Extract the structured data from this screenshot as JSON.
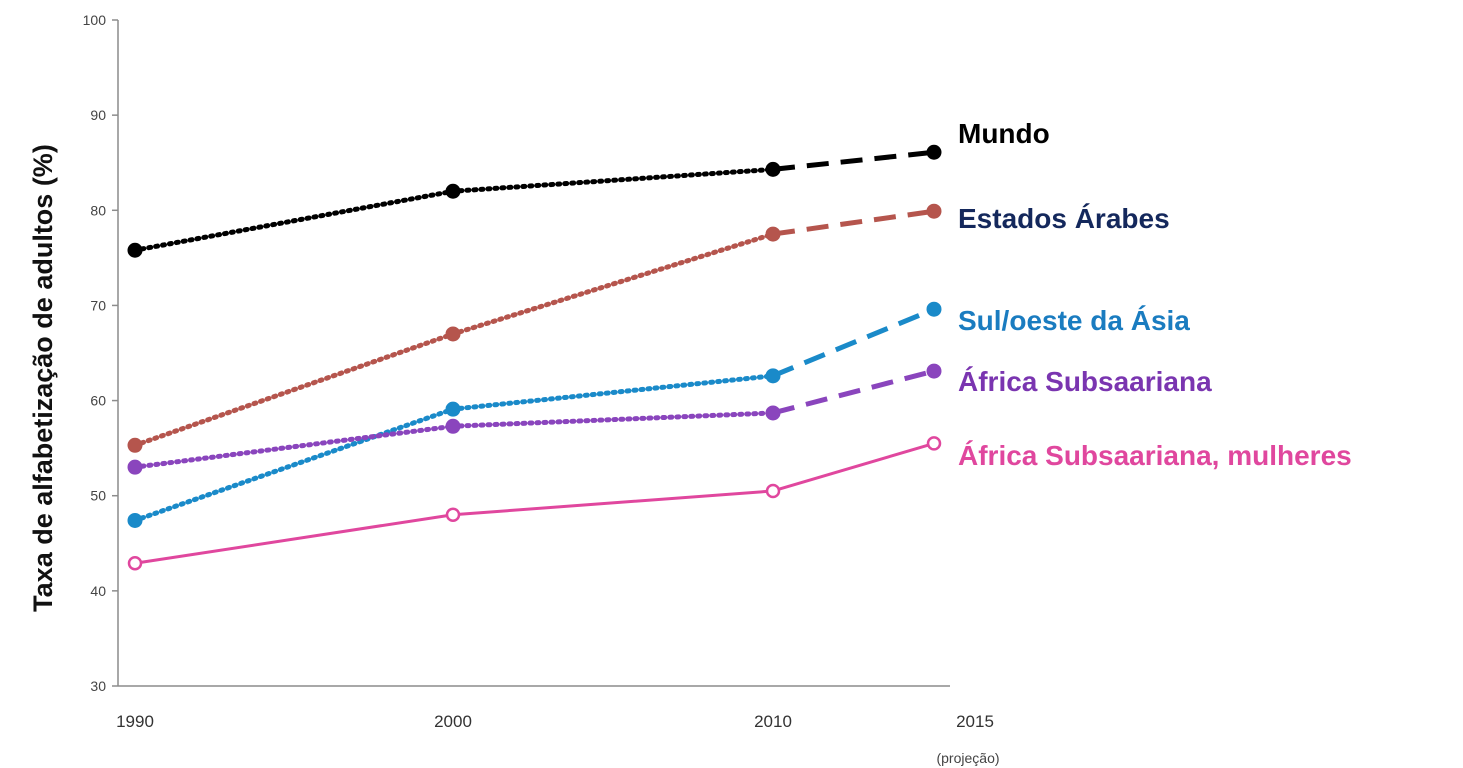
{
  "chart_data": {
    "type": "line",
    "title": "",
    "xlabel": "",
    "ylabel": "Taxa de alfabetização de adultos (%)",
    "ylim": [
      30,
      100
    ],
    "yticks": [
      30,
      40,
      50,
      60,
      70,
      80,
      90,
      100
    ],
    "x": [
      1990,
      2000,
      2010,
      2015
    ],
    "x_tick_labels": [
      "1990",
      "2000",
      "2010",
      "2015"
    ],
    "x_sublabel": "(projeção)",
    "grid": false,
    "legend": "direct-labels-right",
    "series": [
      {
        "name": "Mundo",
        "values": [
          75.8,
          82.0,
          84.3,
          86.1
        ],
        "color": "#000000",
        "label_color": "#000000",
        "marker": "filled",
        "line_styles": [
          "dotted",
          "dotted",
          "dashed"
        ]
      },
      {
        "name": "Estados Árabes",
        "values": [
          55.3,
          67.0,
          77.5,
          79.9
        ],
        "color": "#b5554d",
        "label_color": "#14285c",
        "marker": "filled",
        "line_styles": [
          "dotted",
          "dotted",
          "dashed"
        ]
      },
      {
        "name": "Sul/oeste da Ásia",
        "values": [
          47.4,
          59.1,
          62.6,
          69.6
        ],
        "color": "#1a8ac9",
        "label_color": "#1a7cc0",
        "marker": "filled",
        "line_styles": [
          "dotted",
          "dotted",
          "dashed"
        ]
      },
      {
        "name": "África Subsaariana",
        "values": [
          53.0,
          57.3,
          58.7,
          63.1
        ],
        "color": "#8a45bd",
        "label_color": "#7a35b0",
        "marker": "filled",
        "line_styles": [
          "dotted",
          "dotted",
          "dashed"
        ]
      },
      {
        "name": "África Subsaariana, mulheres",
        "values": [
          42.9,
          48.0,
          50.5,
          55.5
        ],
        "color": "#e0479e",
        "label_color": "#e0479e",
        "marker": "open",
        "line_styles": [
          "solid",
          "solid",
          "solid"
        ]
      }
    ]
  }
}
